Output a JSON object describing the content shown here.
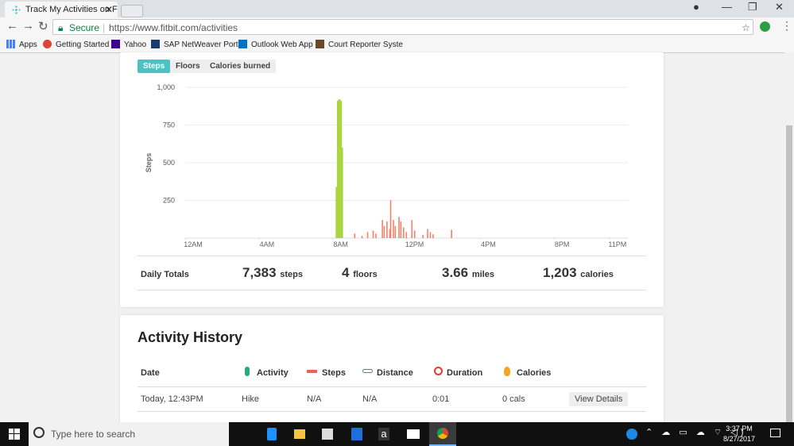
{
  "browser": {
    "tab_title": "Track My Activities on Fit",
    "address_secure": "Secure",
    "url": "https://www.fitbit.com/activities",
    "bookmarks": [
      "Apps",
      "Getting Started",
      "Yahoo",
      "SAP NetWeaver Porta",
      "Outlook Web App",
      "Court Reporter Syste"
    ]
  },
  "page_tabs": [
    "Steps",
    "Floors",
    "Calories burned"
  ],
  "chart_data": {
    "type": "bar",
    "y_label": "Steps",
    "xlim": [
      0,
      24
    ],
    "xticks": [
      {
        "value": 0,
        "label": "12AM"
      },
      {
        "value": 4,
        "label": "4AM"
      },
      {
        "value": 8,
        "label": "8AM"
      },
      {
        "value": 12,
        "label": "12PM"
      },
      {
        "value": 16,
        "label": "4PM"
      },
      {
        "value": 20,
        "label": "8PM"
      },
      {
        "value": 23,
        "label": "11PM"
      }
    ],
    "ylim": [
      0,
      1000
    ],
    "yticks": [
      250,
      500,
      750,
      {
        "value": 1000,
        "label": "1,000"
      }
    ],
    "grid": true,
    "series": [
      {
        "color": "#a6d43a",
        "x": [
          8.2,
          8.27,
          8.33,
          8.4,
          8.47,
          8.53
        ],
        "values": [
          340,
          910,
          920,
          920,
          910,
          600
        ]
      },
      {
        "color": "#f0826c",
        "x": [
          9.2,
          9.6,
          9.9,
          10.2,
          10.35,
          10.7,
          10.8,
          10.95,
          11.1,
          11.15,
          11.3,
          11.4,
          11.6,
          11.7,
          11.85,
          12.0,
          12.3,
          12.45,
          12.9,
          13.15,
          13.3,
          13.45,
          14.45
        ],
        "values": [
          30,
          15,
          40,
          50,
          30,
          120,
          80,
          110,
          60,
          250,
          120,
          80,
          140,
          110,
          70,
          40,
          120,
          50,
          20,
          60,
          40,
          25,
          55
        ]
      }
    ]
  },
  "daily_totals": {
    "label": "Daily Totals",
    "items": [
      {
        "value": "7,383",
        "unit": "steps"
      },
      {
        "value": "4",
        "unit": "floors"
      },
      {
        "value": "3.66",
        "unit": "miles"
      },
      {
        "value": "1,203",
        "unit": "calories"
      }
    ]
  },
  "activity_history": {
    "title": "Activity History",
    "columns": [
      "Date",
      "Activity",
      "Steps",
      "Distance",
      "Duration",
      "Calories"
    ],
    "rows": [
      [
        "Today, 12:43PM",
        "Hike",
        "N/A",
        "N/A",
        "0:01",
        "0 cals",
        "View Details"
      ]
    ]
  },
  "taskbar": {
    "search": "Type here to search",
    "time": "3:37 PM",
    "date": "8/27/2017"
  }
}
